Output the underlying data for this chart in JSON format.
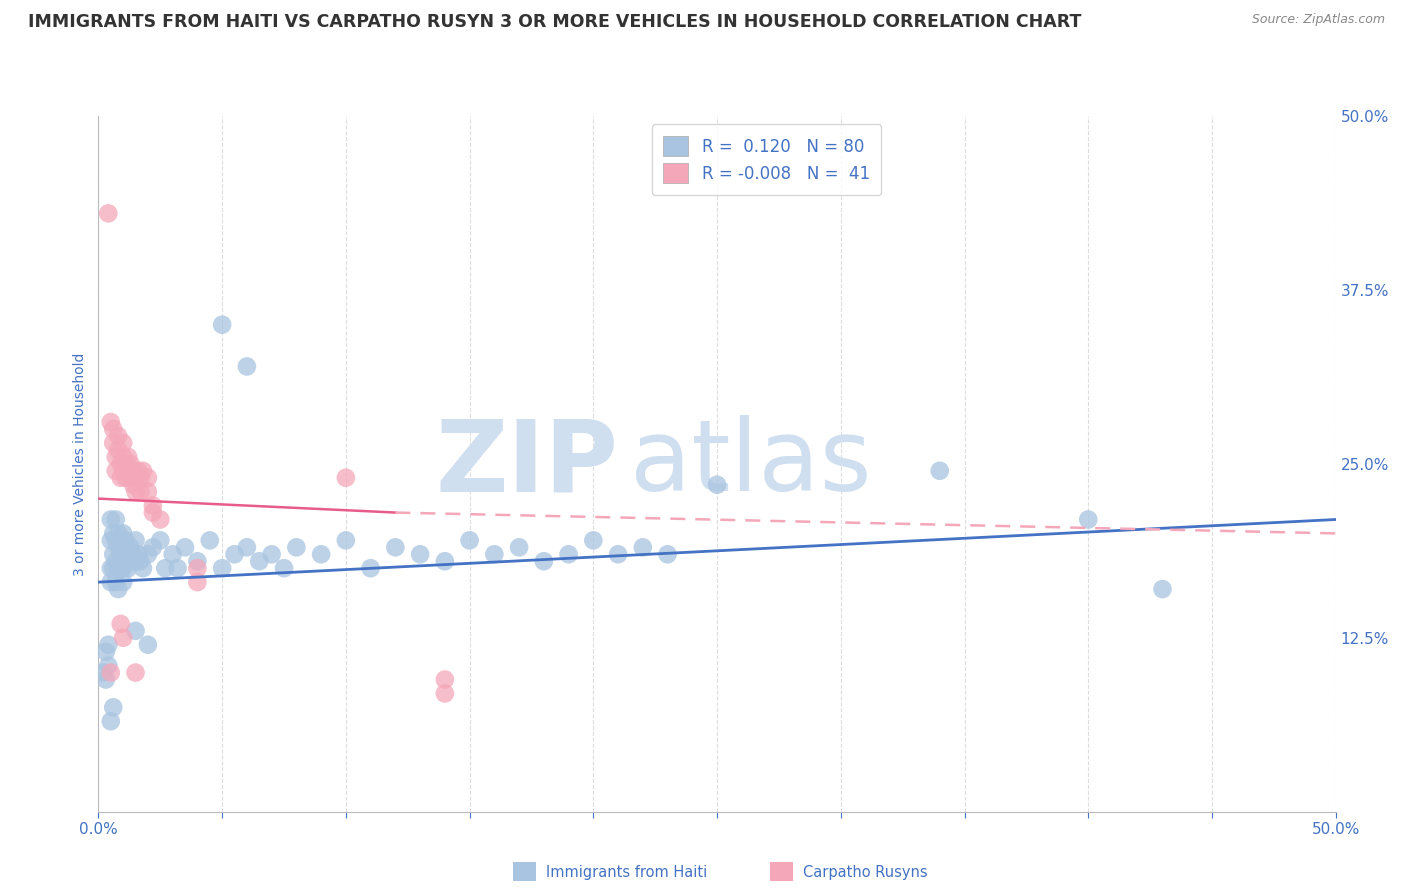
{
  "title": "IMMIGRANTS FROM HAITI VS CARPATHO RUSYN 3 OR MORE VEHICLES IN HOUSEHOLD CORRELATION CHART",
  "source_text": "Source: ZipAtlas.com",
  "ylabel": "3 or more Vehicles in Household",
  "xlim": [
    0.0,
    0.5
  ],
  "ylim": [
    0.0,
    0.5
  ],
  "right_yticks": [
    0.0,
    0.125,
    0.25,
    0.375,
    0.5
  ],
  "right_yticklabels": [
    "",
    "12.5%",
    "25.0%",
    "37.5%",
    "50.0%"
  ],
  "legend_label1": "Immigrants from Haiti",
  "legend_label2": "Carpatho Rusyns",
  "R1": 0.12,
  "N1": 80,
  "R2": -0.008,
  "N2": 41,
  "haiti_color": "#a8c4e0",
  "rusyn_color": "#f4a7b9",
  "haiti_line_color": "#4472c4",
  "rusyn_line_solid_color": "#e85c8a",
  "rusyn_line_dash_color": "#f4a7b9",
  "scatter_alpha": 0.75,
  "watermark_zip": "ZIP",
  "watermark_atlas": "atlas",
  "watermark_color": "#d0dff0",
  "background_color": "#ffffff",
  "grid_color": "#dddddd",
  "title_color": "#333333",
  "axis_label_color": "#4472c4",
  "haiti_scatter": [
    [
      0.002,
      0.1
    ],
    [
      0.003,
      0.095
    ],
    [
      0.003,
      0.115
    ],
    [
      0.004,
      0.105
    ],
    [
      0.004,
      0.12
    ],
    [
      0.005,
      0.175
    ],
    [
      0.005,
      0.165
    ],
    [
      0.005,
      0.195
    ],
    [
      0.005,
      0.21
    ],
    [
      0.006,
      0.185
    ],
    [
      0.006,
      0.175
    ],
    [
      0.006,
      0.2
    ],
    [
      0.007,
      0.195
    ],
    [
      0.007,
      0.18
    ],
    [
      0.007,
      0.165
    ],
    [
      0.007,
      0.21
    ],
    [
      0.008,
      0.19
    ],
    [
      0.008,
      0.2
    ],
    [
      0.008,
      0.175
    ],
    [
      0.008,
      0.16
    ],
    [
      0.009,
      0.185
    ],
    [
      0.009,
      0.175
    ],
    [
      0.009,
      0.195
    ],
    [
      0.01,
      0.2
    ],
    [
      0.01,
      0.185
    ],
    [
      0.01,
      0.175
    ],
    [
      0.01,
      0.165
    ],
    [
      0.011,
      0.195
    ],
    [
      0.011,
      0.18
    ],
    [
      0.012,
      0.185
    ],
    [
      0.012,
      0.175
    ],
    [
      0.013,
      0.19
    ],
    [
      0.013,
      0.18
    ],
    [
      0.014,
      0.185
    ],
    [
      0.015,
      0.195
    ],
    [
      0.015,
      0.18
    ],
    [
      0.016,
      0.185
    ],
    [
      0.017,
      0.18
    ],
    [
      0.018,
      0.175
    ],
    [
      0.02,
      0.185
    ],
    [
      0.022,
      0.19
    ],
    [
      0.025,
      0.195
    ],
    [
      0.027,
      0.175
    ],
    [
      0.03,
      0.185
    ],
    [
      0.032,
      0.175
    ],
    [
      0.035,
      0.19
    ],
    [
      0.04,
      0.18
    ],
    [
      0.045,
      0.195
    ],
    [
      0.05,
      0.175
    ],
    [
      0.055,
      0.185
    ],
    [
      0.06,
      0.19
    ],
    [
      0.065,
      0.18
    ],
    [
      0.07,
      0.185
    ],
    [
      0.075,
      0.175
    ],
    [
      0.08,
      0.19
    ],
    [
      0.09,
      0.185
    ],
    [
      0.1,
      0.195
    ],
    [
      0.11,
      0.175
    ],
    [
      0.12,
      0.19
    ],
    [
      0.13,
      0.185
    ],
    [
      0.14,
      0.18
    ],
    [
      0.15,
      0.195
    ],
    [
      0.16,
      0.185
    ],
    [
      0.17,
      0.19
    ],
    [
      0.18,
      0.18
    ],
    [
      0.19,
      0.185
    ],
    [
      0.2,
      0.195
    ],
    [
      0.21,
      0.185
    ],
    [
      0.22,
      0.19
    ],
    [
      0.23,
      0.185
    ],
    [
      0.05,
      0.35
    ],
    [
      0.06,
      0.32
    ],
    [
      0.25,
      0.235
    ],
    [
      0.34,
      0.245
    ],
    [
      0.015,
      0.13
    ],
    [
      0.02,
      0.12
    ],
    [
      0.4,
      0.21
    ],
    [
      0.43,
      0.16
    ],
    [
      0.005,
      0.065
    ],
    [
      0.006,
      0.075
    ]
  ],
  "rusyn_scatter": [
    [
      0.004,
      0.43
    ],
    [
      0.005,
      0.28
    ],
    [
      0.006,
      0.275
    ],
    [
      0.006,
      0.265
    ],
    [
      0.007,
      0.255
    ],
    [
      0.007,
      0.245
    ],
    [
      0.008,
      0.27
    ],
    [
      0.008,
      0.26
    ],
    [
      0.009,
      0.25
    ],
    [
      0.009,
      0.24
    ],
    [
      0.01,
      0.255
    ],
    [
      0.01,
      0.245
    ],
    [
      0.01,
      0.265
    ],
    [
      0.011,
      0.25
    ],
    [
      0.011,
      0.24
    ],
    [
      0.012,
      0.245
    ],
    [
      0.012,
      0.255
    ],
    [
      0.013,
      0.24
    ],
    [
      0.013,
      0.25
    ],
    [
      0.014,
      0.245
    ],
    [
      0.014,
      0.235
    ],
    [
      0.015,
      0.24
    ],
    [
      0.015,
      0.23
    ],
    [
      0.016,
      0.245
    ],
    [
      0.017,
      0.24
    ],
    [
      0.017,
      0.23
    ],
    [
      0.018,
      0.245
    ],
    [
      0.02,
      0.24
    ],
    [
      0.02,
      0.23
    ],
    [
      0.022,
      0.22
    ],
    [
      0.022,
      0.215
    ],
    [
      0.025,
      0.21
    ],
    [
      0.1,
      0.24
    ],
    [
      0.14,
      0.095
    ],
    [
      0.14,
      0.085
    ],
    [
      0.04,
      0.175
    ],
    [
      0.04,
      0.165
    ],
    [
      0.009,
      0.135
    ],
    [
      0.01,
      0.125
    ],
    [
      0.015,
      0.1
    ],
    [
      0.005,
      0.1
    ]
  ],
  "haiti_trend": [
    0.0,
    0.5,
    0.165,
    0.21
  ],
  "rusyn_trend_solid": [
    0.0,
    0.12,
    0.225,
    0.215
  ],
  "rusyn_trend_dash": [
    0.12,
    0.5,
    0.215,
    0.2
  ]
}
